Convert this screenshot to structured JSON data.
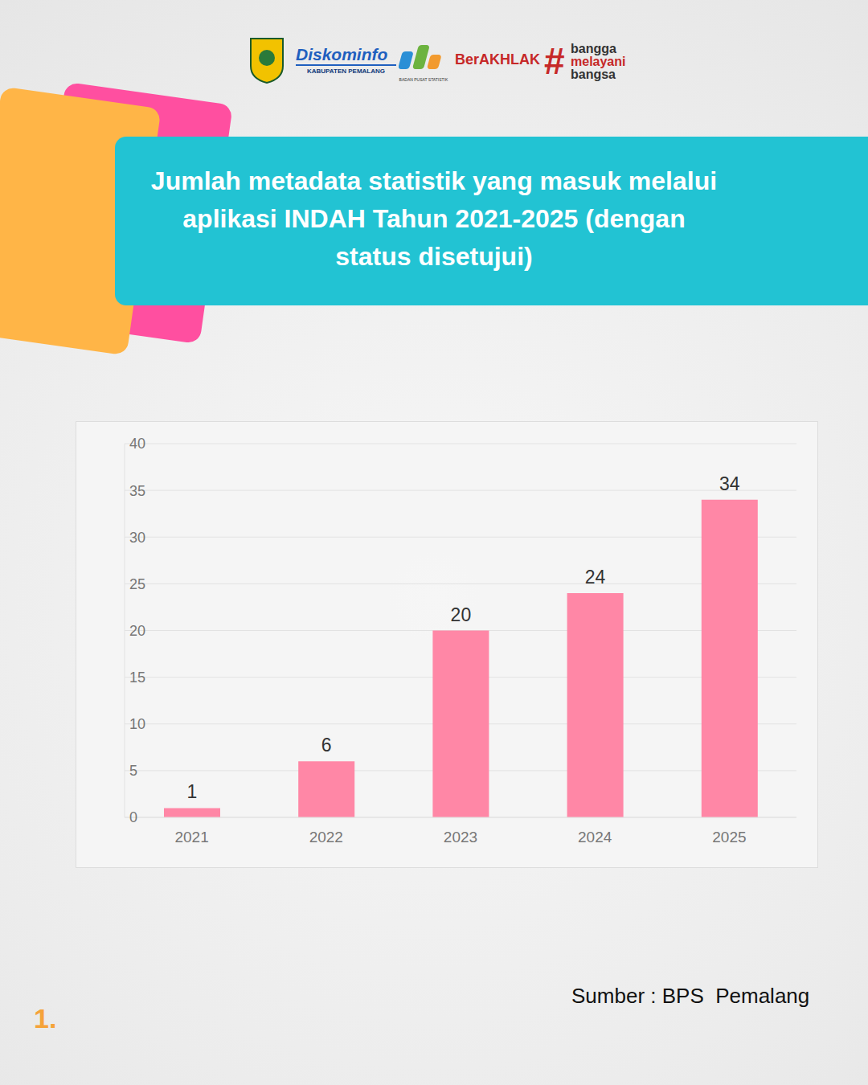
{
  "header": {
    "diskominfo": "Diskominfo",
    "region": "KABUPATEN PEMALANG",
    "bps": "BADAN PUSAT STATISTIK",
    "berakhlak": "BerAKHLAK",
    "hashtag": "#",
    "tagline": [
      "bangga",
      "melayani",
      "bangsa"
    ]
  },
  "chart_data": {
    "type": "bar",
    "title": "Jumlah metadata statistik yang masuk melalui aplikasi INDAH Tahun 2021-2025 (dengan status disetujui)",
    "categories": [
      "2021",
      "2022",
      "2023",
      "2024",
      "2025"
    ],
    "values": [
      1,
      6,
      20,
      24,
      34
    ],
    "color": "#ff87a6",
    "ylim": [
      0,
      40
    ],
    "yticks": [
      0,
      5,
      10,
      15,
      20,
      25,
      30,
      35,
      40
    ],
    "grid": true,
    "data_labels": true
  },
  "source": "Sumber : BPS  Pemalang",
  "page": "1."
}
